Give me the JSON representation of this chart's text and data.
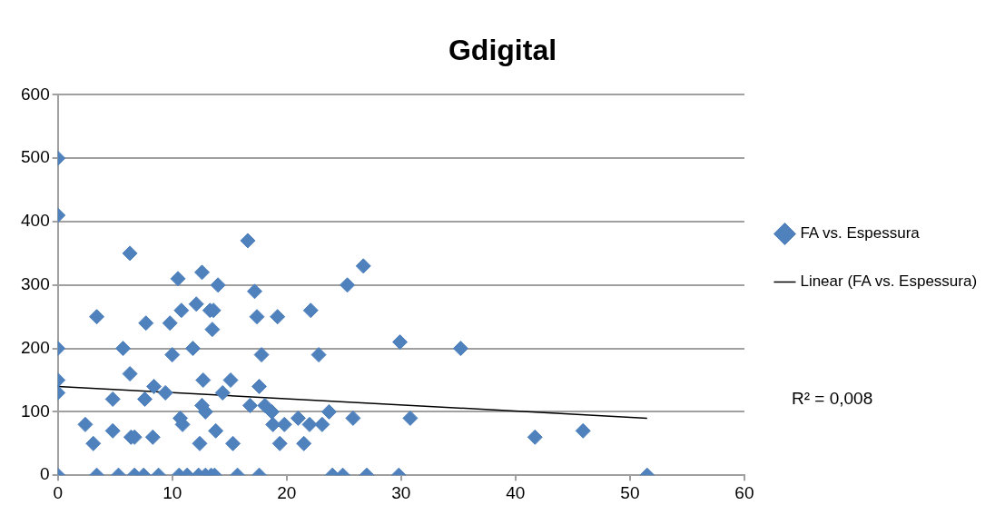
{
  "chart_data": {
    "type": "scatter",
    "title": "Gdigital",
    "xlim": [
      0,
      60
    ],
    "xticks": [
      0,
      10,
      20,
      30,
      40,
      50,
      60
    ],
    "ylim": [
      0,
      600
    ],
    "yticks": [
      0,
      100,
      200,
      300,
      400,
      500,
      600
    ],
    "grid": "y",
    "legend": "right",
    "marker": "diamond",
    "annotations": [
      "R² = 0,008"
    ],
    "series": [
      {
        "name": "FA vs. Espessura",
        "color": "#4f81bd",
        "x": [
          0,
          0,
          0,
          0,
          0,
          0,
          2.4,
          3.1,
          3.4,
          3.4,
          4.8,
          4.8,
          5.3,
          5.7,
          6.3,
          6.3,
          6.4,
          6.7,
          6.7,
          7.5,
          7.7,
          7.6,
          8.4,
          8.3,
          8.8,
          9.4,
          9.8,
          10,
          10.5,
          10.7,
          10.9,
          10.8,
          10.6,
          11.3,
          11.8,
          12.1,
          12.4,
          12.3,
          12.6,
          12.6,
          12.7,
          12.9,
          12.9,
          13.3,
          13.5,
          13.6,
          13.4,
          13.7,
          13.8,
          14,
          14.4,
          15.1,
          15.3,
          15.7,
          16.6,
          16.8,
          17.2,
          17.4,
          17.6,
          17.6,
          17.8,
          18.1,
          18.7,
          18.8,
          19.2,
          19.4,
          19.8,
          21,
          21.5,
          22.1,
          22,
          22.8,
          23.1,
          23.7,
          24,
          24.9,
          25.3,
          25.8,
          26.7,
          27,
          29.8,
          29.9,
          30.8,
          35.2,
          41.7,
          45.9,
          51.5
        ],
        "values": [
          500,
          410,
          200,
          150,
          130,
          0,
          80,
          50,
          250,
          0,
          70,
          120,
          0,
          200,
          160,
          350,
          60,
          60,
          0,
          0,
          240,
          120,
          140,
          60,
          0,
          130,
          240,
          190,
          310,
          90,
          80,
          260,
          0,
          0,
          200,
          270,
          50,
          0,
          320,
          110,
          150,
          100,
          0,
          260,
          230,
          260,
          0,
          0,
          70,
          300,
          130,
          150,
          50,
          0,
          370,
          110,
          290,
          250,
          0,
          140,
          190,
          110,
          100,
          80,
          250,
          50,
          80,
          90,
          50,
          260,
          80,
          190,
          80,
          100,
          0,
          0,
          300,
          90,
          330,
          0,
          0,
          210,
          90,
          200,
          60,
          70,
          0
        ]
      },
      {
        "name": "Linear (FA vs. Espessura)",
        "type": "line",
        "color": "#000000",
        "marker": "none",
        "x": [
          0,
          51.5
        ],
        "values": [
          140,
          90
        ]
      }
    ]
  }
}
